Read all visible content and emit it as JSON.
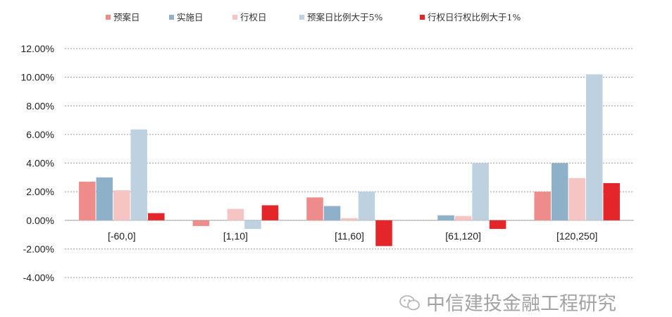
{
  "chart_data": {
    "type": "bar",
    "categories": [
      "[-60,0]",
      "[1,10]",
      "[11,60]",
      "[61,120]",
      "[120,250]"
    ],
    "series": [
      {
        "name": "预案日",
        "color": "#ee8c8c",
        "values": [
          2.7,
          -0.4,
          1.6,
          0.0,
          2.0
        ]
      },
      {
        "name": "实施日",
        "color": "#8fb0c9",
        "values": [
          3.0,
          0.0,
          1.0,
          0.35,
          4.0
        ]
      },
      {
        "name": "行权日",
        "color": "#f7c4c4",
        "values": [
          2.1,
          0.8,
          0.15,
          0.3,
          2.95
        ]
      },
      {
        "name": "预案日比例大于5%",
        "color": "#bdd1e0",
        "values": [
          6.35,
          -0.6,
          2.0,
          4.0,
          10.2
        ]
      },
      {
        "name": "行权日行权比例大于1%",
        "color": "#e4262b",
        "values": [
          0.5,
          1.05,
          -1.8,
          -0.6,
          2.6
        ]
      }
    ],
    "yticks": [
      "12.00%",
      "10.00%",
      "8.00%",
      "6.00%",
      "4.00%",
      "2.00%",
      "0.00%",
      "-2.00%",
      "-4.00%"
    ],
    "ylim": [
      -4,
      12
    ],
    "grid": true,
    "legend_position": "top",
    "title": "",
    "xlabel": "",
    "ylabel": ""
  },
  "watermark": {
    "text": "中信建投金融工程研究",
    "icon": "wechat-icon"
  }
}
